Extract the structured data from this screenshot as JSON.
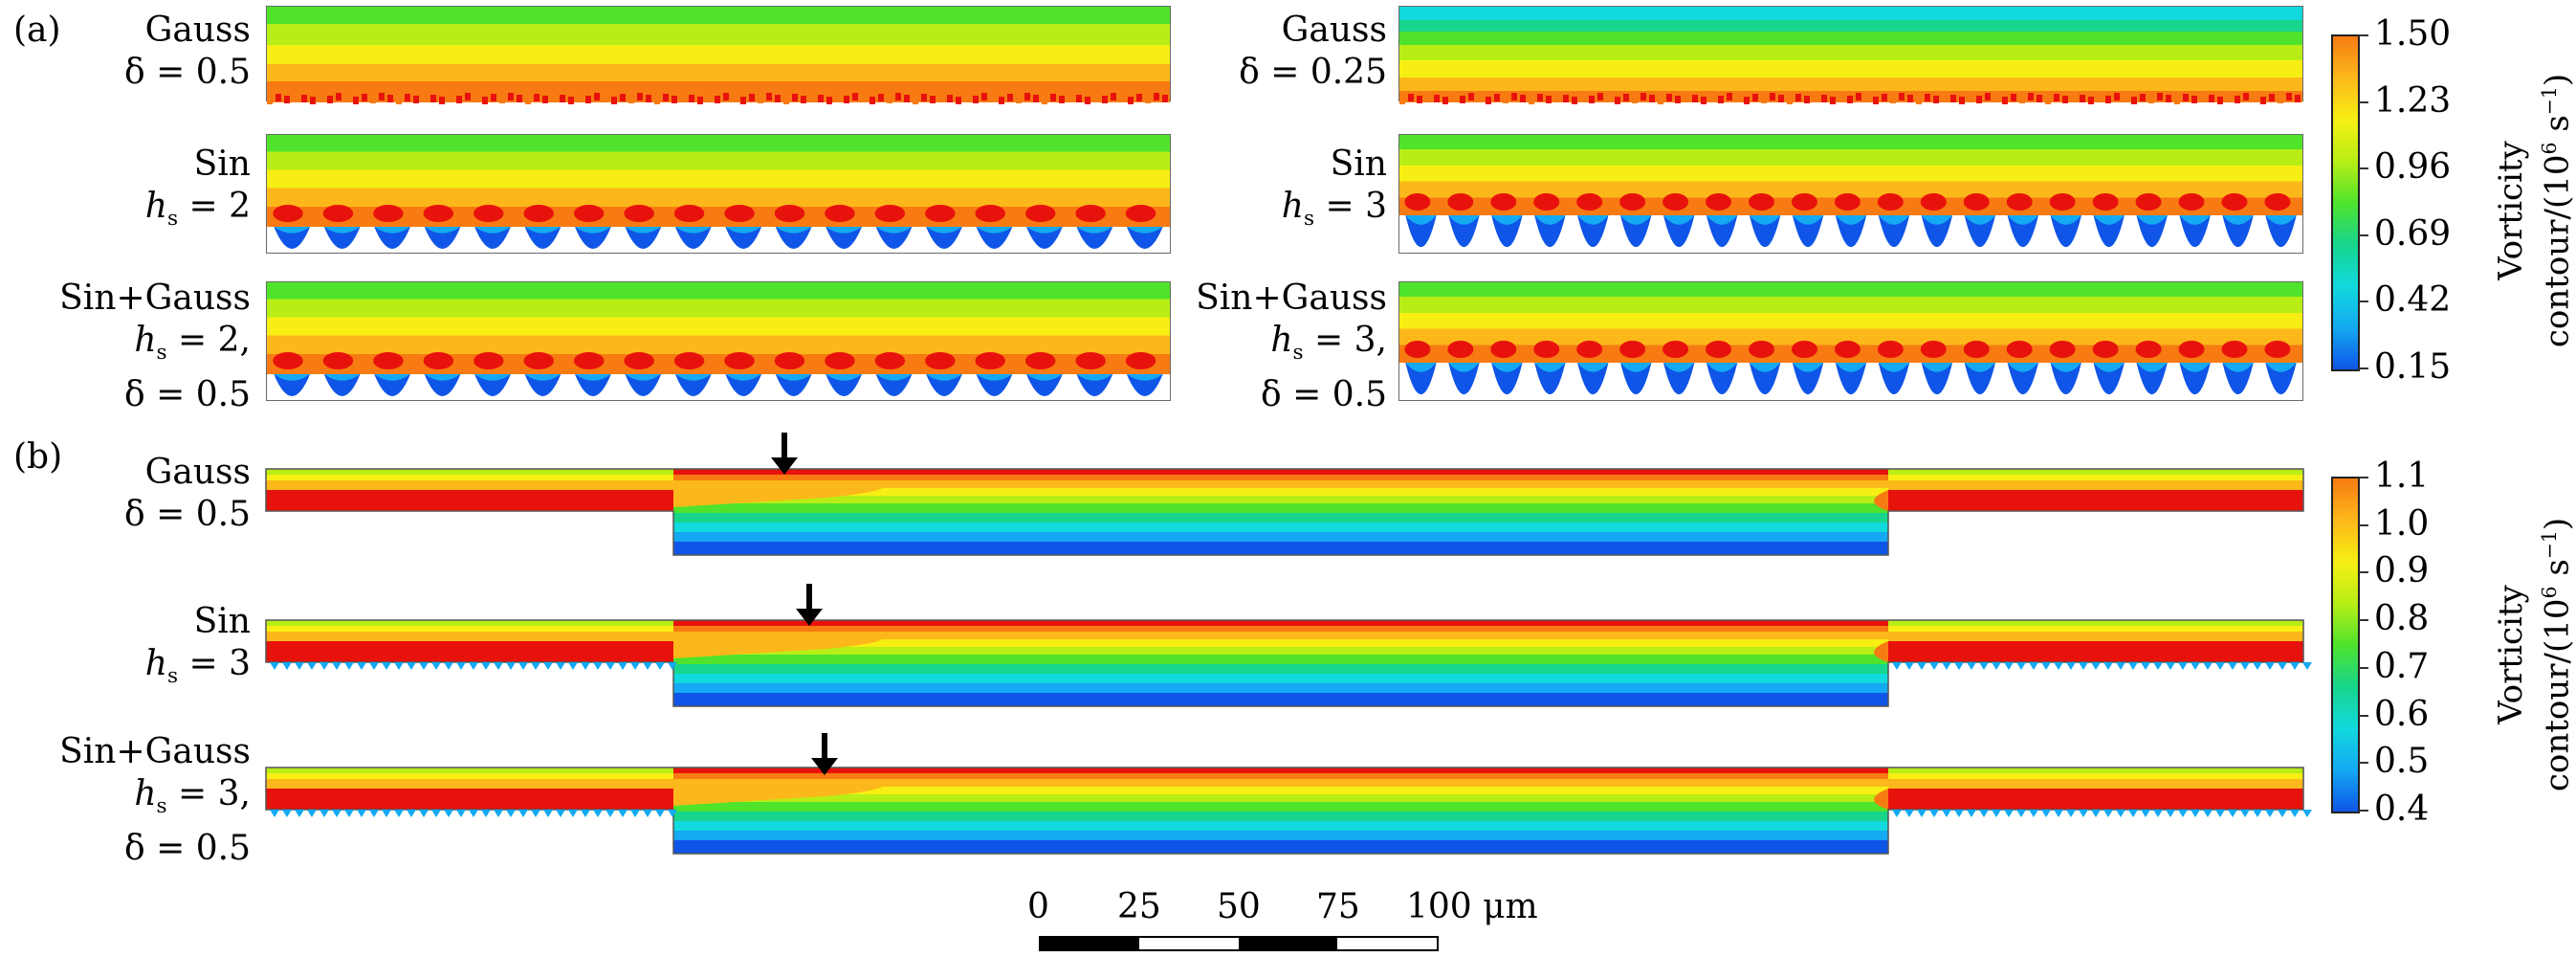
{
  "panel_a": {
    "tag": "(a)",
    "plots": [
      {
        "id": "a1",
        "line1": "Gauss",
        "line2": "δ = 0.5"
      },
      {
        "id": "a2",
        "line1": "Gauss",
        "line2": "δ = 0.25"
      },
      {
        "id": "a3",
        "line1": "Sin",
        "line2_pre": "h",
        "line2_sub": "s",
        "line2_post": " = 2"
      },
      {
        "id": "a4",
        "line1": "Sin",
        "line2_pre": "h",
        "line2_sub": "s",
        "line2_post": " = 3"
      },
      {
        "id": "a5",
        "line1": "Sin+Gauss",
        "line2_pre": "h",
        "line2_sub": "s",
        "line2_post": " = 2,",
        "line3": "δ = 0.5"
      },
      {
        "id": "a6",
        "line1": "Sin+Gauss",
        "line2_pre": "h",
        "line2_sub": "s",
        "line2_post": " = 3,",
        "line3": "δ = 0.5"
      }
    ],
    "colorbar": {
      "ticks": [
        "1.50",
        "1.23",
        "0.96",
        "0.69",
        "0.42",
        "0.15"
      ],
      "label_line1": "Vorticity",
      "label_line2_pre": "contour/(10",
      "label_line2_sup": "6",
      "label_line2_mid": " s",
      "label_line2_sup2": "−1",
      "label_line2_post": ")"
    }
  },
  "panel_b": {
    "tag": "(b)",
    "plots": [
      {
        "id": "b1",
        "line1": "Gauss",
        "line2": "δ = 0.5"
      },
      {
        "id": "b2",
        "line1": "Sin",
        "line2_pre": "h",
        "line2_sub": "s",
        "line2_post": " = 3"
      },
      {
        "id": "b3",
        "line1": "Sin+Gauss",
        "line2_pre": "h",
        "line2_sub": "s",
        "line2_post": " = 3,",
        "line3": "δ = 0.5"
      }
    ],
    "colorbar": {
      "ticks": [
        "1.1",
        "1.0",
        "0.9",
        "0.8",
        "0.7",
        "0.6",
        "0.5",
        "0.4"
      ],
      "label_line1": "Vorticity",
      "label_line2_pre": "contour/(10",
      "label_line2_sup": "6",
      "label_line2_mid": " s",
      "label_line2_sup2": "−1",
      "label_line2_post": ")"
    }
  },
  "scale_bar": {
    "labels": [
      "0",
      "25",
      "50",
      "75",
      "100 μm"
    ]
  },
  "colors": {
    "red": "#e8120c",
    "orange": "#f77b12",
    "amber": "#fcb81a",
    "yellow": "#f7ef13",
    "lime": "#b8ee16",
    "green": "#4fe32c",
    "teal": "#17d58d",
    "cyan": "#11d9dd",
    "sky": "#14a9f2",
    "blue": "#0f55e7",
    "navy": "#0a2fd1"
  }
}
